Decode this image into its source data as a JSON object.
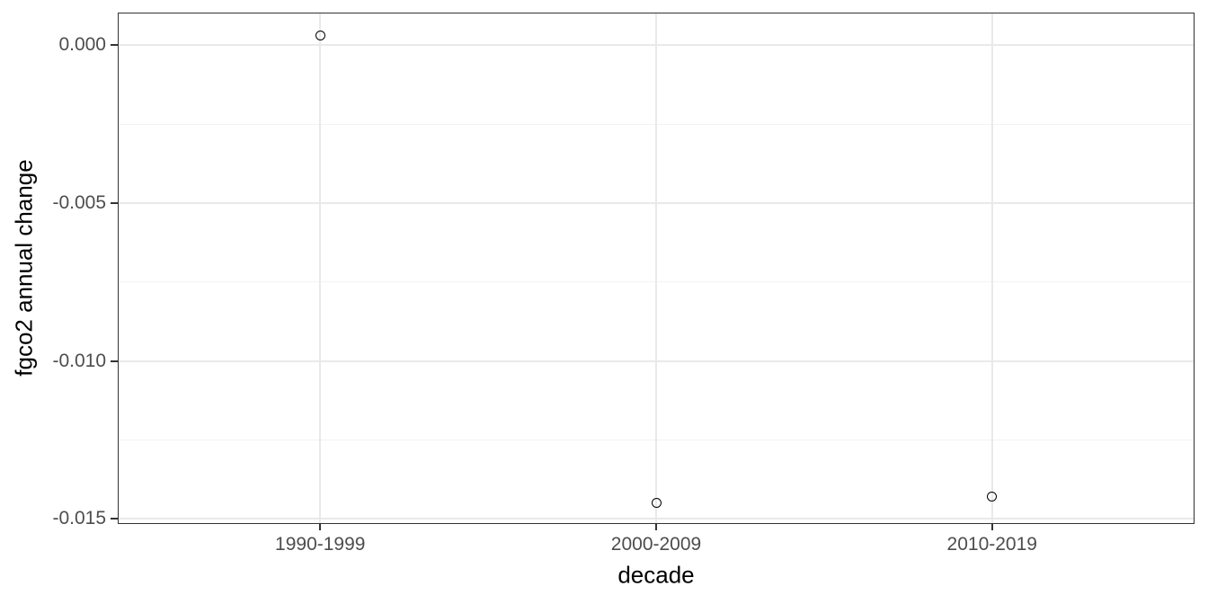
{
  "chart_data": {
    "type": "scatter",
    "title": "",
    "xlabel": "decade",
    "ylabel": "fgco2 annual change",
    "categories": [
      "1990-1999",
      "2000-2009",
      "2010-2019"
    ],
    "values": [
      0.0003,
      -0.0145,
      -0.0143
    ],
    "ylim": [
      -0.01514,
      0.00101
    ],
    "y_major_ticks": {
      "values": [
        0.0,
        -0.005,
        -0.01,
        -0.015
      ],
      "labels": [
        "0.000",
        "-0.005",
        "-0.010",
        "-0.015"
      ]
    },
    "y_minor_ticks": [
      -0.0025,
      -0.0075,
      -0.0125
    ],
    "grid": "horizontal major+minor, vertical at categories",
    "legend": "none",
    "point_style": "open-circle",
    "colors": {
      "background": "#ffffff",
      "grid_major": "#e9e9e9",
      "grid_minor": "#f3f3f3",
      "panel_border": "#333333",
      "tick_mark": "#333333",
      "axis_text": "#4d4d4d",
      "axis_title": "#000000",
      "point_stroke": "#000000"
    }
  }
}
